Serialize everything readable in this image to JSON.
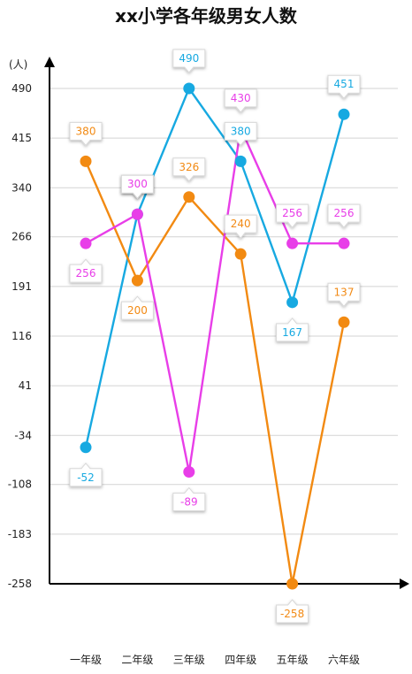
{
  "chart_data": {
    "type": "line",
    "title": "xx小学各年级男女人数",
    "ylabel": "(人)",
    "xlabel": "",
    "categories": [
      "一年级",
      "二年级",
      "三年级",
      "四年级",
      "五年级",
      "六年级"
    ],
    "yticks": [
      490,
      415,
      340,
      266,
      191,
      116,
      41,
      -34,
      -108,
      -183,
      -258
    ],
    "ylim": [
      -258,
      490
    ],
    "grid": true,
    "legend": "none",
    "series": [
      {
        "color": "#17a9e1",
        "values": [
          -52,
          300,
          490,
          380,
          167,
          451
        ]
      },
      {
        "color": "#f28a12",
        "values": [
          380,
          200,
          326,
          240,
          -258,
          137
        ]
      },
      {
        "color": "#e83ee8",
        "values": [
          256,
          300,
          -89,
          430,
          256,
          256
        ]
      }
    ]
  }
}
